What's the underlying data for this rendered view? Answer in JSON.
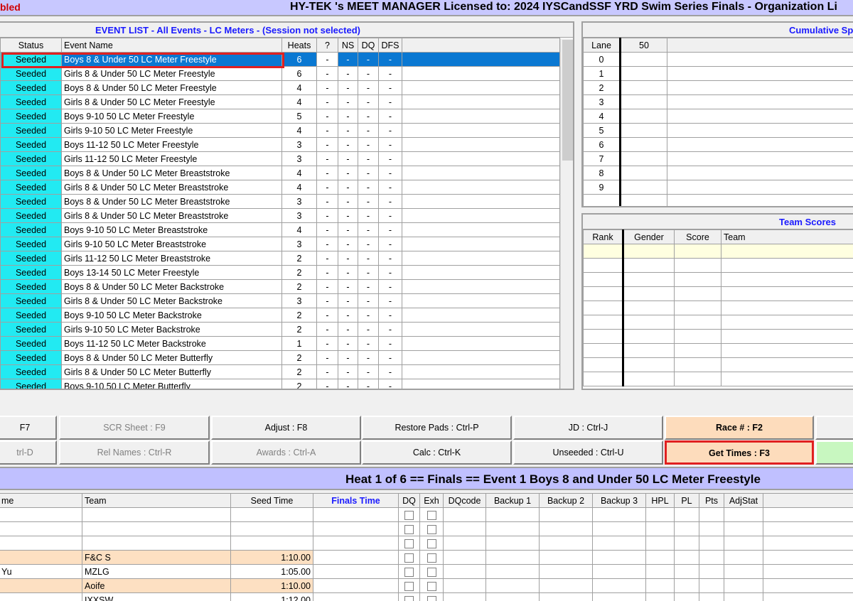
{
  "titlebar": {
    "left_text": "bled",
    "title": "HY-TEK 's MEET MANAGER Licensed to:  2024 IYSCandSSF YRD Swim Series Finals - Organization Li"
  },
  "event_list": {
    "caption": "EVENT LIST - All Events - LC Meters - (Session not selected)",
    "columns": [
      "Status",
      "Event Name",
      "Heats",
      "?",
      "NS",
      "DQ",
      "DFS"
    ],
    "rows": [
      {
        "status": "Seeded",
        "name": "Boys 8 & Under 50 LC Meter Freestyle",
        "heats": "6",
        "selected": true
      },
      {
        "status": "Seeded",
        "name": "Girls 8 & Under 50 LC Meter Freestyle",
        "heats": "6"
      },
      {
        "status": "Seeded",
        "name": "Boys 8 & Under 50 LC Meter Freestyle",
        "heats": "4"
      },
      {
        "status": "Seeded",
        "name": "Girls 8 & Under 50 LC Meter Freestyle",
        "heats": "4"
      },
      {
        "status": "Seeded",
        "name": "Boys 9-10 50 LC Meter Freestyle",
        "heats": "5"
      },
      {
        "status": "Seeded",
        "name": "Girls 9-10 50 LC Meter Freestyle",
        "heats": "4"
      },
      {
        "status": "Seeded",
        "name": "Boys 11-12 50 LC Meter Freestyle",
        "heats": "3"
      },
      {
        "status": "Seeded",
        "name": "Girls 11-12 50 LC Meter Freestyle",
        "heats": "3"
      },
      {
        "status": "Seeded",
        "name": "Boys 8 & Under 50 LC Meter Breaststroke",
        "heats": "4"
      },
      {
        "status": "Seeded",
        "name": "Girls 8 & Under 50 LC Meter Breaststroke",
        "heats": "4"
      },
      {
        "status": "Seeded",
        "name": "Boys 8 & Under 50 LC Meter Breaststroke",
        "heats": "3"
      },
      {
        "status": "Seeded",
        "name": "Girls 8 & Under 50 LC Meter Breaststroke",
        "heats": "3"
      },
      {
        "status": "Seeded",
        "name": "Boys 9-10 50 LC Meter Breaststroke",
        "heats": "4"
      },
      {
        "status": "Seeded",
        "name": "Girls 9-10 50 LC Meter Breaststroke",
        "heats": "3"
      },
      {
        "status": "Seeded",
        "name": "Girls 11-12 50 LC Meter Breaststroke",
        "heats": "2"
      },
      {
        "status": "Seeded",
        "name": "Boys 13-14 50 LC Meter Freestyle",
        "heats": "2"
      },
      {
        "status": "Seeded",
        "name": "Boys 8 & Under 50 LC Meter Backstroke",
        "heats": "2"
      },
      {
        "status": "Seeded",
        "name": "Girls 8 & Under 50 LC Meter Backstroke",
        "heats": "3"
      },
      {
        "status": "Seeded",
        "name": "Boys 9-10 50 LC Meter Backstroke",
        "heats": "2"
      },
      {
        "status": "Seeded",
        "name": "Girls 9-10 50 LC Meter Backstroke",
        "heats": "2"
      },
      {
        "status": "Seeded",
        "name": "Boys 11-12 50 LC Meter Backstroke",
        "heats": "1"
      },
      {
        "status": "Seeded",
        "name": "Boys 8 & Under 50 LC Meter Butterfly",
        "heats": "2"
      },
      {
        "status": "Seeded",
        "name": "Girls 8 & Under 50 LC Meter Butterfly",
        "heats": "2"
      },
      {
        "status": "Seeded",
        "name": "Boys 9-10 50 LC Meter Butterfly",
        "heats": "2"
      }
    ],
    "dash": "-"
  },
  "splits": {
    "caption": "Cumulative Sp",
    "columns": [
      "Lane",
      "50"
    ],
    "lanes": [
      "0",
      "1",
      "2",
      "3",
      "4",
      "5",
      "6",
      "7",
      "8",
      "9",
      "",
      ""
    ]
  },
  "team_scores": {
    "caption": "Team Scores",
    "columns": [
      "Rank",
      "Gender",
      "Score",
      "Team"
    ]
  },
  "buttons": {
    "row1": [
      "F7",
      "SCR Sheet : F9",
      "Adjust : F8",
      "Restore Pads : Ctrl-P",
      "JD : Ctrl-J",
      "Race # : F2",
      ""
    ],
    "row2": [
      "trl-D",
      "Rel Names : Ctrl-R",
      "Awards : Ctrl-A",
      "Calc : Ctrl-K",
      "Unseeded : Ctrl-U",
      "Get Times : F3",
      ""
    ]
  },
  "heat": {
    "title": "Heat  1  of  6  ==  Finals  ==  Event 1  Boys 8 and Under 50 LC Meter Freestyle"
  },
  "results": {
    "columns": [
      "me",
      "Team",
      "Seed Time",
      "Finals Time",
      "DQ",
      "Exh",
      "DQcode",
      "Backup 1",
      "Backup 2",
      "Backup 3",
      "HPL",
      "PL",
      "Pts",
      "AdjStat"
    ],
    "rows": [
      {
        "name": "",
        "team": "",
        "seed": ""
      },
      {
        "name": "",
        "team": "",
        "seed": ""
      },
      {
        "name": "",
        "team": "",
        "seed": ""
      },
      {
        "name": "",
        "team": "F&C S",
        "seed": "1:10.00",
        "peach": true
      },
      {
        "name": "Yu",
        "team": "MZLG",
        "seed": "1:05.00"
      },
      {
        "name": "",
        "team": "Aoife",
        "seed": "1:10.00",
        "peach": true
      },
      {
        "name": "",
        "team": "IXXSW",
        "seed": "1:12.00"
      }
    ]
  }
}
